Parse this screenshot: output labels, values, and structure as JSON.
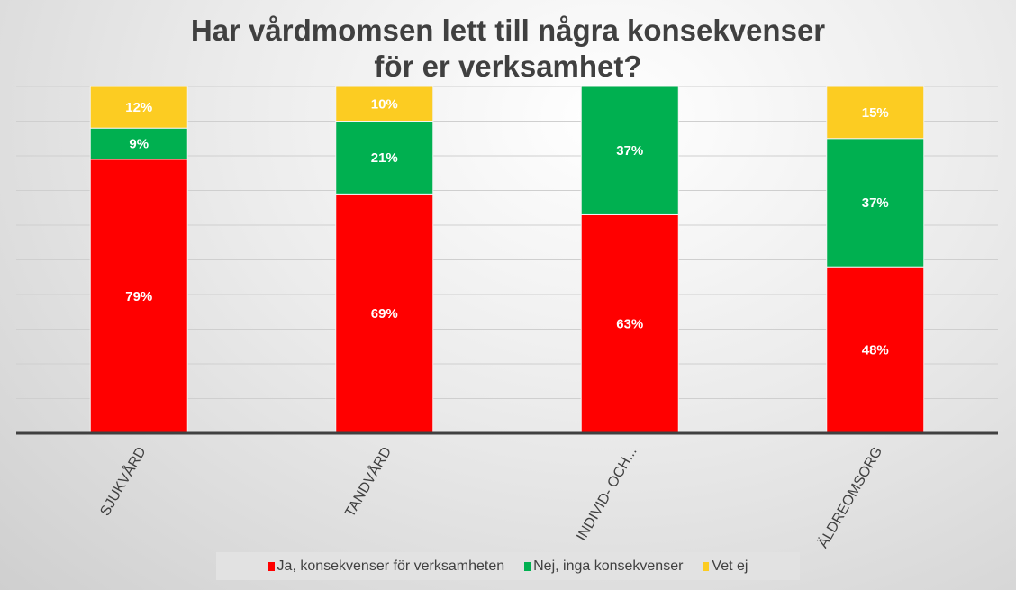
{
  "chart_data": {
    "type": "bar",
    "stacked": true,
    "title_lines": [
      "Har vårdmomsen lett till några konsekvenser",
      "för er verksamhet?"
    ],
    "categories": [
      "SJUKVÅRD",
      "TANDVÅRD",
      "INDIVID- OCH...",
      "ÄLDREOMSORG"
    ],
    "series": [
      {
        "name": "Ja, konsekvenser för verksamheten",
        "color": "#FF0000",
        "values": [
          79,
          69,
          63,
          48
        ],
        "labels": [
          "79%",
          "69%",
          "63%",
          "48%"
        ]
      },
      {
        "name": "Nej, inga konsekvenser",
        "color": "#00B050",
        "values": [
          9,
          21,
          37,
          37
        ],
        "labels": [
          "9%",
          "21%",
          "37%",
          "37%"
        ]
      },
      {
        "name": "Vet ej",
        "color": "#FCCC22",
        "values": [
          12,
          10,
          0,
          15
        ],
        "labels": [
          "12%",
          "10%",
          "",
          "15%"
        ]
      }
    ],
    "ylim": [
      0,
      100
    ],
    "grid": true,
    "legend_position": "bottom"
  }
}
